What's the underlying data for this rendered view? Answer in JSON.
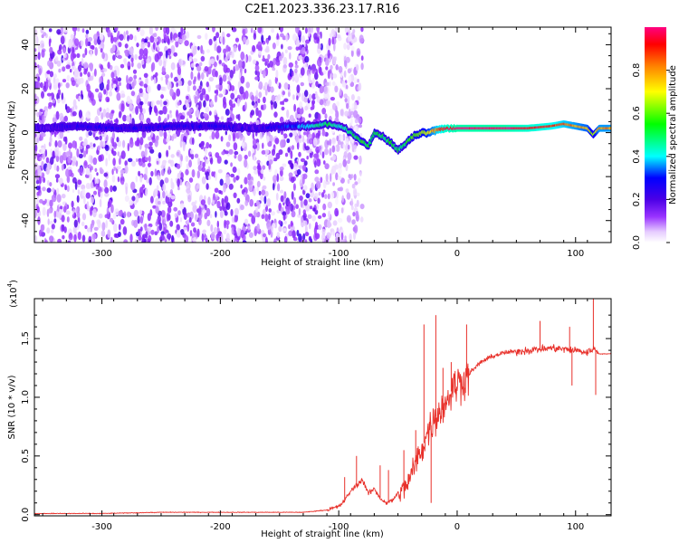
{
  "title": "C2E1.2023.336.23.17.R16",
  "chart_data": [
    {
      "type": "heatmap",
      "xlabel": "Height of straight line (km)",
      "ylabel": "Frequency (Hz)",
      "xlim": [
        -357,
        130
      ],
      "ylim": [
        -50,
        48
      ],
      "xticks": [
        "-300",
        "-200",
        "-100",
        "0",
        "100"
      ],
      "xtick_values": [
        -300,
        -200,
        -100,
        0,
        100
      ],
      "yticks": [
        "-40",
        "-20",
        "0",
        "20",
        "40"
      ],
      "ytick_values": [
        -40,
        -20,
        0,
        20,
        40
      ],
      "colorbar": {
        "label": "Normalized spectral amplitude",
        "ticks": [
          "0.0",
          "0.2",
          "0.4",
          "0.6",
          "0.8"
        ],
        "tick_values": [
          0.0,
          0.2,
          0.4,
          0.6,
          0.8
        ],
        "range": [
          0,
          1
        ],
        "colormap": [
          "#ffffff",
          "#e6ccff",
          "#9933ff",
          "#4b00e6",
          "#0000ff",
          "#00ffff",
          "#00ff00",
          "#ffff00",
          "#ff8000",
          "#ff0000",
          "#ff0080"
        ]
      },
      "ridge": {
        "height_km": [
          -357,
          -320,
          -280,
          -240,
          -200,
          -170,
          -140,
          -120,
          -110,
          -100,
          -95,
          -90,
          -85,
          -80,
          -75,
          -70,
          -65,
          -60,
          -55,
          -50,
          -45,
          -40,
          -35,
          -30,
          -25,
          -20,
          -10,
          0,
          20,
          40,
          60,
          80,
          90,
          100,
          110,
          115,
          120,
          130
        ],
        "frequency_hz": [
          2,
          3,
          2,
          3,
          3,
          2,
          3,
          3,
          4,
          3,
          2,
          0,
          -2,
          -4,
          -6,
          0,
          -1,
          -3,
          -5,
          -8,
          -6,
          -3,
          -1,
          0,
          0,
          1,
          2,
          2,
          2,
          2,
          2,
          3,
          4,
          3,
          2,
          -1,
          2,
          2
        ],
        "amplitude": [
          0.2,
          0.25,
          0.25,
          0.25,
          0.25,
          0.2,
          0.3,
          0.45,
          0.5,
          0.4,
          0.45,
          0.5,
          0.5,
          0.55,
          0.5,
          0.55,
          0.5,
          0.5,
          0.55,
          0.5,
          0.5,
          0.55,
          0.6,
          0.65,
          0.7,
          0.8,
          0.95,
          1.0,
          1.0,
          1.0,
          0.95,
          0.9,
          0.85,
          0.8,
          0.75,
          0.6,
          0.8,
          0.8
        ]
      },
      "noise": {
        "region_km": [
          -357,
          -100
        ],
        "frequency_range_hz": [
          -50,
          48
        ],
        "amplitude_range": [
          0.02,
          0.15
        ]
      }
    },
    {
      "type": "line",
      "xlabel": "Height of straight line (km)",
      "ylabel": "SNR (10 * v/v)",
      "multiplier": "(x10",
      "multiplier_exp": "4",
      "multiplier_close": ")",
      "xlim": [
        -357,
        130
      ],
      "ylim": [
        -0.01,
        1.84
      ],
      "xticks": [
        "-300",
        "-200",
        "-100",
        "0",
        "100"
      ],
      "xtick_values": [
        -300,
        -200,
        -100,
        0,
        100
      ],
      "yticks": [
        "0.0",
        "0.5",
        "1.0",
        "1.5"
      ],
      "ytick_values": [
        0.0,
        0.5,
        1.0,
        1.5
      ],
      "series": [
        {
          "color": "#e8302a",
          "x": [
            -357,
            -300,
            -250,
            -200,
            -160,
            -130,
            -110,
            -100,
            -95,
            -90,
            -85,
            -80,
            -75,
            -70,
            -65,
            -60,
            -55,
            -50,
            -45,
            -40,
            -35,
            -30,
            -25,
            -20,
            -15,
            -10,
            -5,
            0,
            5,
            10,
            20,
            30,
            40,
            60,
            80,
            100,
            110,
            115,
            120,
            130
          ],
          "y": [
            0.01,
            0.01,
            0.02,
            0.02,
            0.02,
            0.02,
            0.04,
            0.07,
            0.12,
            0.2,
            0.25,
            0.3,
            0.18,
            0.22,
            0.14,
            0.1,
            0.12,
            0.18,
            0.22,
            0.3,
            0.45,
            0.55,
            0.7,
            0.8,
            0.88,
            0.95,
            1.05,
            1.12,
            1.15,
            1.2,
            1.3,
            1.35,
            1.38,
            1.4,
            1.42,
            1.4,
            1.38,
            1.42,
            1.37,
            1.37
          ]
        }
      ],
      "spikes": [
        {
          "x": -95,
          "y": 0.32
        },
        {
          "x": -85,
          "y": 0.5
        },
        {
          "x": -65,
          "y": 0.42
        },
        {
          "x": -58,
          "y": 0.38
        },
        {
          "x": -45,
          "y": 0.55
        },
        {
          "x": -35,
          "y": 0.72
        },
        {
          "x": -28,
          "y": 1.62
        },
        {
          "x": -22,
          "y": 0.1
        },
        {
          "x": -18,
          "y": 1.7
        },
        {
          "x": -12,
          "y": 1.25
        },
        {
          "x": -5,
          "y": 1.3
        },
        {
          "x": 8,
          "y": 1.62
        },
        {
          "x": 70,
          "y": 1.65
        },
        {
          "x": 95,
          "y": 1.6
        },
        {
          "x": 97,
          "y": 1.1
        },
        {
          "x": 115,
          "y": 1.86
        },
        {
          "x": 117,
          "y": 1.02
        }
      ]
    }
  ]
}
